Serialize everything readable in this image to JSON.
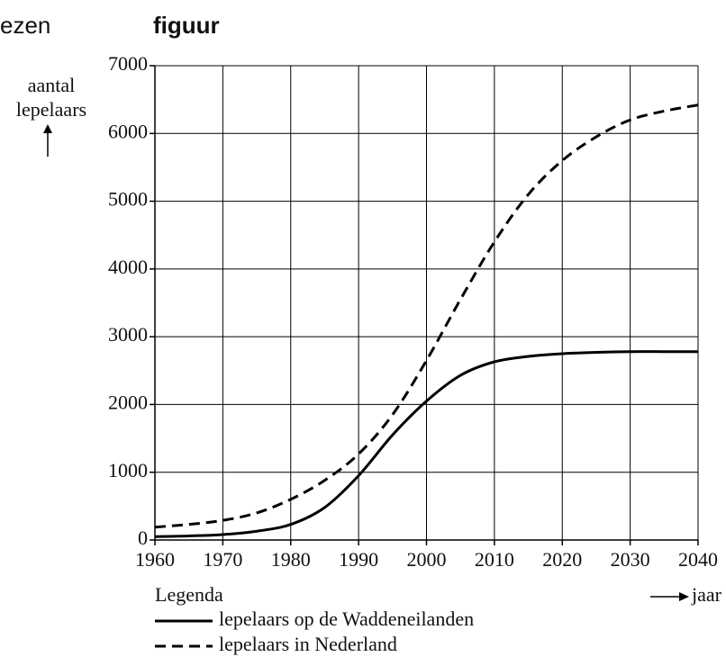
{
  "header": {
    "left": "ezen",
    "title": "figuur"
  },
  "chart_data": {
    "type": "line",
    "ylabel": [
      "aantal",
      "lepelaars"
    ],
    "xlabel": "jaar",
    "legend_title": "Legenda",
    "x": [
      1960,
      1965,
      1970,
      1975,
      1980,
      1985,
      1990,
      1995,
      2000,
      2005,
      2010,
      2015,
      2020,
      2025,
      2030,
      2035,
      2040
    ],
    "series": [
      {
        "name": "lepelaars op de Waddeneilanden",
        "color": "#000000",
        "dash": "solid",
        "values": [
          50,
          60,
          80,
          130,
          230,
          480,
          950,
          1550,
          2050,
          2430,
          2630,
          2710,
          2750,
          2770,
          2780,
          2780,
          2780
        ]
      },
      {
        "name": "lepelaars in Nederland",
        "color": "#000000",
        "dash": "dashed",
        "values": [
          190,
          230,
          290,
          400,
          600,
          880,
          1270,
          1850,
          2650,
          3550,
          4400,
          5100,
          5600,
          5950,
          6200,
          6330,
          6420
        ]
      }
    ],
    "xlim": [
      1960,
      2040
    ],
    "xticks": [
      1960,
      1970,
      1980,
      1990,
      2000,
      2010,
      2020,
      2030,
      2040
    ],
    "ylim": [
      0,
      7000
    ],
    "yticks": [
      0,
      1000,
      2000,
      3000,
      4000,
      5000,
      6000,
      7000
    ],
    "grid": true
  }
}
